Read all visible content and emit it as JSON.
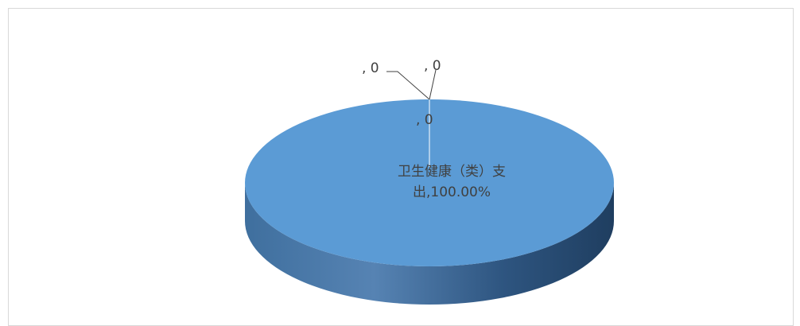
{
  "chart_data": {
    "type": "pie3d",
    "values": [
      100,
      0,
      0,
      0
    ],
    "value_labels": [
      "卫生健康（类）支出,100.00%",
      ", 0",
      ", 0",
      ", 0"
    ],
    "colors": [
      "#5b9bd5",
      "#ed7d31",
      "#a5a5a5",
      "#ffc000"
    ]
  }
}
